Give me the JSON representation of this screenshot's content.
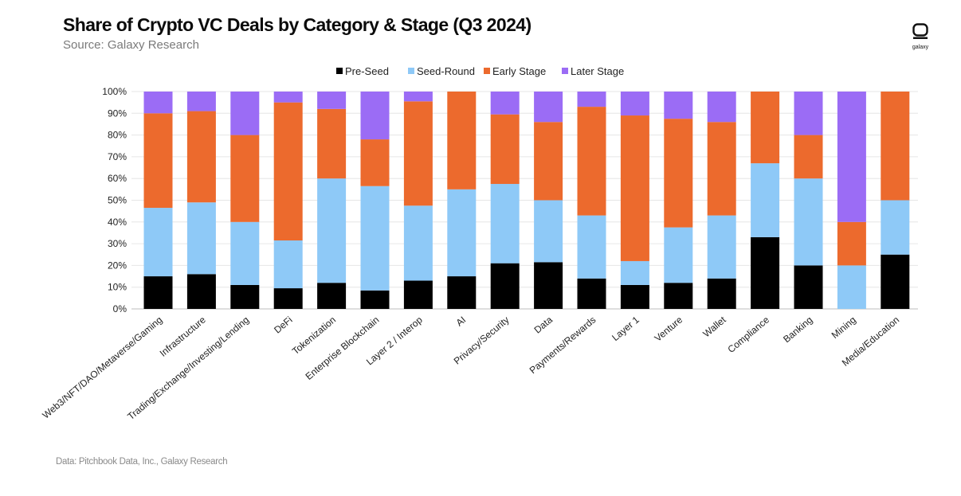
{
  "header": {
    "title": "Share of Crypto VC Deals by Category & Stage (Q3 2024)",
    "subtitle": "Source: Galaxy Research"
  },
  "footer": {
    "note": "Data: Pitchbook Data, Inc., Galaxy Research"
  },
  "logo": {
    "text": "galaxy",
    "icon": "galaxy-logo-icon"
  },
  "chart_data": {
    "type": "bar",
    "stacked": true,
    "title": "Share of Crypto VC Deals by Category & Stage (Q3 2024)",
    "subtitle": "Source: Galaxy Research",
    "xlabel": "",
    "ylabel": "",
    "ylim": [
      0,
      100
    ],
    "y_ticks": [
      "0%",
      "10%",
      "20%",
      "30%",
      "40%",
      "50%",
      "60%",
      "70%",
      "80%",
      "90%",
      "100%"
    ],
    "grid": true,
    "legend_position": "top-center",
    "categories": [
      "Web3/NFT/DAO/Metaverse/Gaming",
      "Infrastructure",
      "Trading/Exchange/Investing/Lending",
      "DeFi",
      "Tokenization",
      "Enterprise Blockchain",
      "Layer 2 / Interop",
      "AI",
      "Privacy/Security",
      "Data",
      "Payments/Rewards",
      "Layer 1",
      "Venture",
      "Wallet",
      "Compliance",
      "Banking",
      "Mining",
      "Media/Education"
    ],
    "series": [
      {
        "name": "Pre-Seed",
        "color": "#000000",
        "values": [
          15,
          16,
          11,
          9.5,
          12,
          8.5,
          13,
          15,
          21,
          21.5,
          14,
          11,
          12,
          14,
          33,
          20,
          0,
          25
        ]
      },
      {
        "name": "Seed-Round",
        "color": "#8ec9f7",
        "values": [
          31.5,
          33,
          29,
          22,
          48,
          48,
          34.5,
          40,
          36.5,
          28.5,
          29,
          11,
          25.5,
          29,
          34,
          40,
          20,
          25
        ]
      },
      {
        "name": "Early Stage",
        "color": "#ec6a2d",
        "values": [
          43.5,
          42,
          40,
          63.5,
          32,
          21.5,
          48,
          45,
          32,
          36,
          50,
          67,
          50,
          43,
          33,
          20,
          20,
          50
        ]
      },
      {
        "name": "Later Stage",
        "color": "#9b6cf5",
        "values": [
          10,
          9,
          20,
          5,
          8,
          22,
          4.5,
          0,
          10.5,
          14,
          7,
          11,
          12.5,
          14,
          0,
          20,
          60,
          0
        ]
      }
    ]
  }
}
